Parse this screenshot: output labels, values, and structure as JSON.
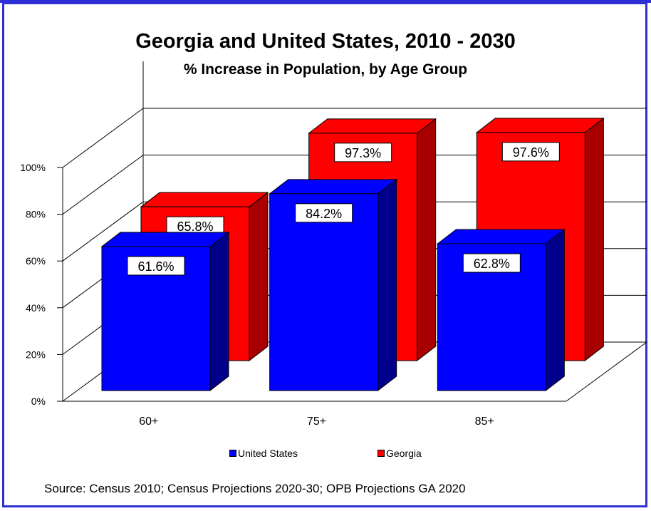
{
  "chart_data": {
    "type": "bar",
    "title": "Georgia and United States, 2010 - 2030",
    "subtitle": "% Increase in Population, by Age Group",
    "categories": [
      "60+",
      "75+",
      "85+"
    ],
    "series": [
      {
        "name": "United States",
        "values": [
          61.6,
          84.2,
          62.8
        ],
        "labels": [
          "61.6%",
          "84.2%",
          "62.8%"
        ],
        "color": "#0000ff",
        "side": "#00008b"
      },
      {
        "name": "Georgia",
        "values": [
          65.8,
          97.3,
          97.6
        ],
        "labels": [
          "65.8%",
          "97.3%",
          "97.6%"
        ],
        "color": "#ff0000",
        "side": "#a80000"
      }
    ],
    "yticks": [
      "0%",
      "20%",
      "40%",
      "60%",
      "80%",
      "100%"
    ],
    "ylim": [
      0,
      100
    ],
    "grid": true,
    "legend": "bottom",
    "three_d": true
  },
  "source": "Source: Census 2010; Census Projections 2020-30; OPB Projections GA 2020"
}
